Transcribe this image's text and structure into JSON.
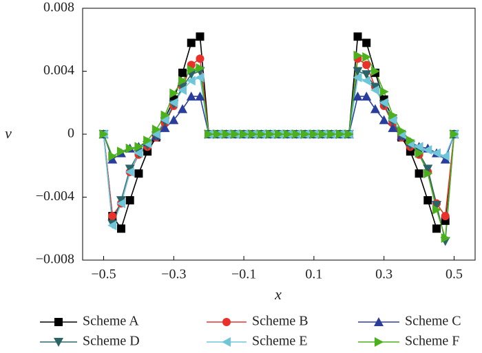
{
  "chart_data": {
    "type": "line",
    "x_label": "x",
    "y_label": "v",
    "x": [
      -0.5,
      -0.475,
      -0.45,
      -0.425,
      -0.4,
      -0.375,
      -0.35,
      -0.325,
      -0.3,
      -0.275,
      -0.25,
      -0.225,
      -0.2,
      -0.175,
      -0.15,
      -0.125,
      -0.1,
      -0.075,
      -0.05,
      -0.025,
      0,
      0.025,
      0.05,
      0.075,
      0.1,
      0.125,
      0.15,
      0.175,
      0.2,
      0.225,
      0.25,
      0.275,
      0.3,
      0.325,
      0.35,
      0.375,
      0.4,
      0.425,
      0.45,
      0.475,
      0.5
    ],
    "series": [
      {
        "name": "Scheme A",
        "color": "#000000",
        "marker": "square",
        "values": [
          0,
          -0.0052,
          -0.006,
          -0.0042,
          -0.0025,
          -0.0011,
          -0.0002,
          0.001,
          0.0022,
          0.0039,
          0.0058,
          0.0062,
          0,
          0,
          0,
          0,
          0,
          0,
          0,
          0,
          0,
          0,
          0,
          0,
          0,
          0,
          0,
          0,
          0,
          0.0062,
          0.0058,
          0.0039,
          0.0022,
          0.001,
          -0.0002,
          -0.0011,
          -0.0025,
          -0.0042,
          -0.006,
          -0.0055,
          0
        ]
      },
      {
        "name": "Scheme B",
        "color": "#e8312a",
        "marker": "circle",
        "values": [
          0,
          -0.0052,
          -0.0044,
          -0.0024,
          -0.0013,
          -0.0008,
          -0.0002,
          0.0007,
          0.0018,
          0.003,
          0.0044,
          0.0048,
          0,
          0,
          0,
          0,
          0,
          0,
          0,
          0,
          0,
          0,
          0,
          0,
          0,
          0,
          0,
          0,
          0,
          0.0048,
          0.0044,
          0.003,
          0.0018,
          0.0007,
          -0.0002,
          -0.0008,
          -0.0013,
          -0.0024,
          -0.0044,
          -0.0052,
          0
        ]
      },
      {
        "name": "Scheme C",
        "color": "#2a3d9b",
        "marker": "triangle-up",
        "values": [
          0,
          -0.0016,
          -0.0012,
          -0.0009,
          -0.0008,
          -0.0005,
          -0.0001,
          0.0004,
          0.0009,
          0.0016,
          0.0024,
          0.0024,
          0,
          0,
          0,
          0,
          0,
          0,
          0,
          0,
          0,
          0,
          0,
          0,
          0,
          0,
          0,
          0,
          0,
          0.0024,
          0.0024,
          0.0016,
          0.0009,
          0.0004,
          -0.0001,
          -0.0005,
          -0.0008,
          -0.0009,
          -0.0012,
          -0.0016,
          0
        ]
      },
      {
        "name": "Scheme D",
        "color": "#2b6466",
        "marker": "triangle-down",
        "values": [
          0,
          -0.0057,
          -0.0042,
          -0.0022,
          -0.0012,
          -0.0007,
          -0.0001,
          0.0008,
          0.0019,
          0.003,
          0.0038,
          0.004,
          0,
          0,
          0,
          0,
          0,
          0,
          0,
          0,
          0,
          0,
          0,
          0,
          0,
          0,
          0,
          0,
          0,
          0.004,
          0.0038,
          0.003,
          0.0019,
          0.0008,
          -0.0001,
          -0.0007,
          -0.0012,
          -0.0022,
          -0.0045,
          -0.0068,
          0
        ]
      },
      {
        "name": "Scheme E",
        "color": "#6ec6d8",
        "marker": "triangle-left",
        "values": [
          0,
          -0.0058,
          -0.0044,
          -0.0024,
          -0.0012,
          -0.0006,
          0,
          0.0009,
          0.002,
          0.0028,
          0.0034,
          0.0036,
          0,
          0,
          0,
          0,
          0,
          0,
          0,
          0,
          0,
          0,
          0,
          0,
          0,
          0,
          0,
          0,
          0,
          0.0036,
          0.0034,
          0.0028,
          0.002,
          0.0009,
          0,
          -0.0006,
          -0.0008,
          -0.001,
          -0.0012,
          -0.0014,
          0
        ]
      },
      {
        "name": "Scheme F",
        "color": "#4caf1e",
        "marker": "triangle-right",
        "values": [
          0,
          -0.0014,
          -0.0011,
          -0.0009,
          -0.0008,
          -0.0004,
          0.0003,
          0.0012,
          0.0026,
          0.0034,
          0.0041,
          0.0042,
          0,
          0,
          0,
          0,
          0,
          0,
          0,
          0,
          0,
          0,
          0,
          0,
          0,
          0,
          0,
          0,
          0,
          0.005,
          0.0049,
          0.004,
          0.0027,
          0.0012,
          0.0002,
          -0.0004,
          -0.0012,
          -0.0025,
          -0.0048,
          -0.0066,
          0
        ]
      }
    ],
    "xlim": [
      -0.56,
      0.56
    ],
    "ylim": [
      -0.008,
      0.008
    ],
    "xticks": [
      {
        "value": -0.5,
        "label": "−0.5"
      },
      {
        "value": -0.3,
        "label": "−0.3"
      },
      {
        "value": -0.1,
        "label": "−0.1"
      },
      0.1,
      0.3,
      0.5
    ],
    "yticks": [
      {
        "value": -0.008,
        "label": "−0.008"
      },
      {
        "value": -0.004,
        "label": "−0.004"
      },
      0,
      0.004,
      0.008
    ]
  }
}
